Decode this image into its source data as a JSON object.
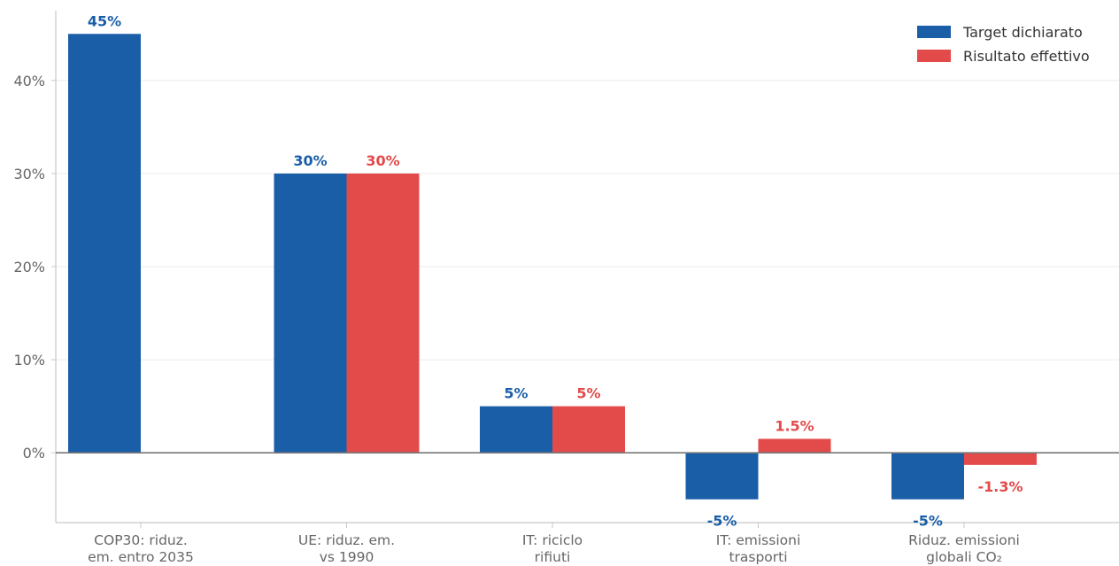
{
  "colors": {
    "target": "#1a5ea8",
    "actual": "#e34a4a",
    "grid": "#ebebeb",
    "axis": "#c8c8c8",
    "zero_line": "#777777"
  },
  "chart_data": {
    "type": "bar",
    "categories": [
      [
        "COP30: riduz.",
        "em. entro 2035"
      ],
      [
        "UE: riduz. em.",
        "vs 1990"
      ],
      [
        "IT: riciclo",
        "rifiuti"
      ],
      [
        "IT: emissioni",
        "trasporti"
      ],
      [
        "Riduz. emissioni",
        "globali CO₂"
      ]
    ],
    "series": [
      {
        "name": "Target dichiarato",
        "color": "#1a5ea8",
        "values": [
          45,
          30,
          5,
          -5,
          -5
        ],
        "labels": [
          "45%",
          "30%",
          "5%",
          "-5%",
          "-5%"
        ]
      },
      {
        "name": "Risultato effettivo",
        "color": "#e34a4a",
        "values": [
          null,
          30,
          5,
          1.5,
          -1.3
        ],
        "labels": [
          "",
          "30%",
          "5%",
          "1.5%",
          "-1.3%"
        ]
      }
    ],
    "ylim": [
      -7.5,
      47.5
    ],
    "yticks": [
      0,
      10,
      20,
      30,
      40
    ],
    "ytick_labels": [
      "0%",
      "10%",
      "20%",
      "30%",
      "40%"
    ],
    "grid": true,
    "legend_position": "top-right",
    "xlabel": "",
    "ylabel": ""
  }
}
